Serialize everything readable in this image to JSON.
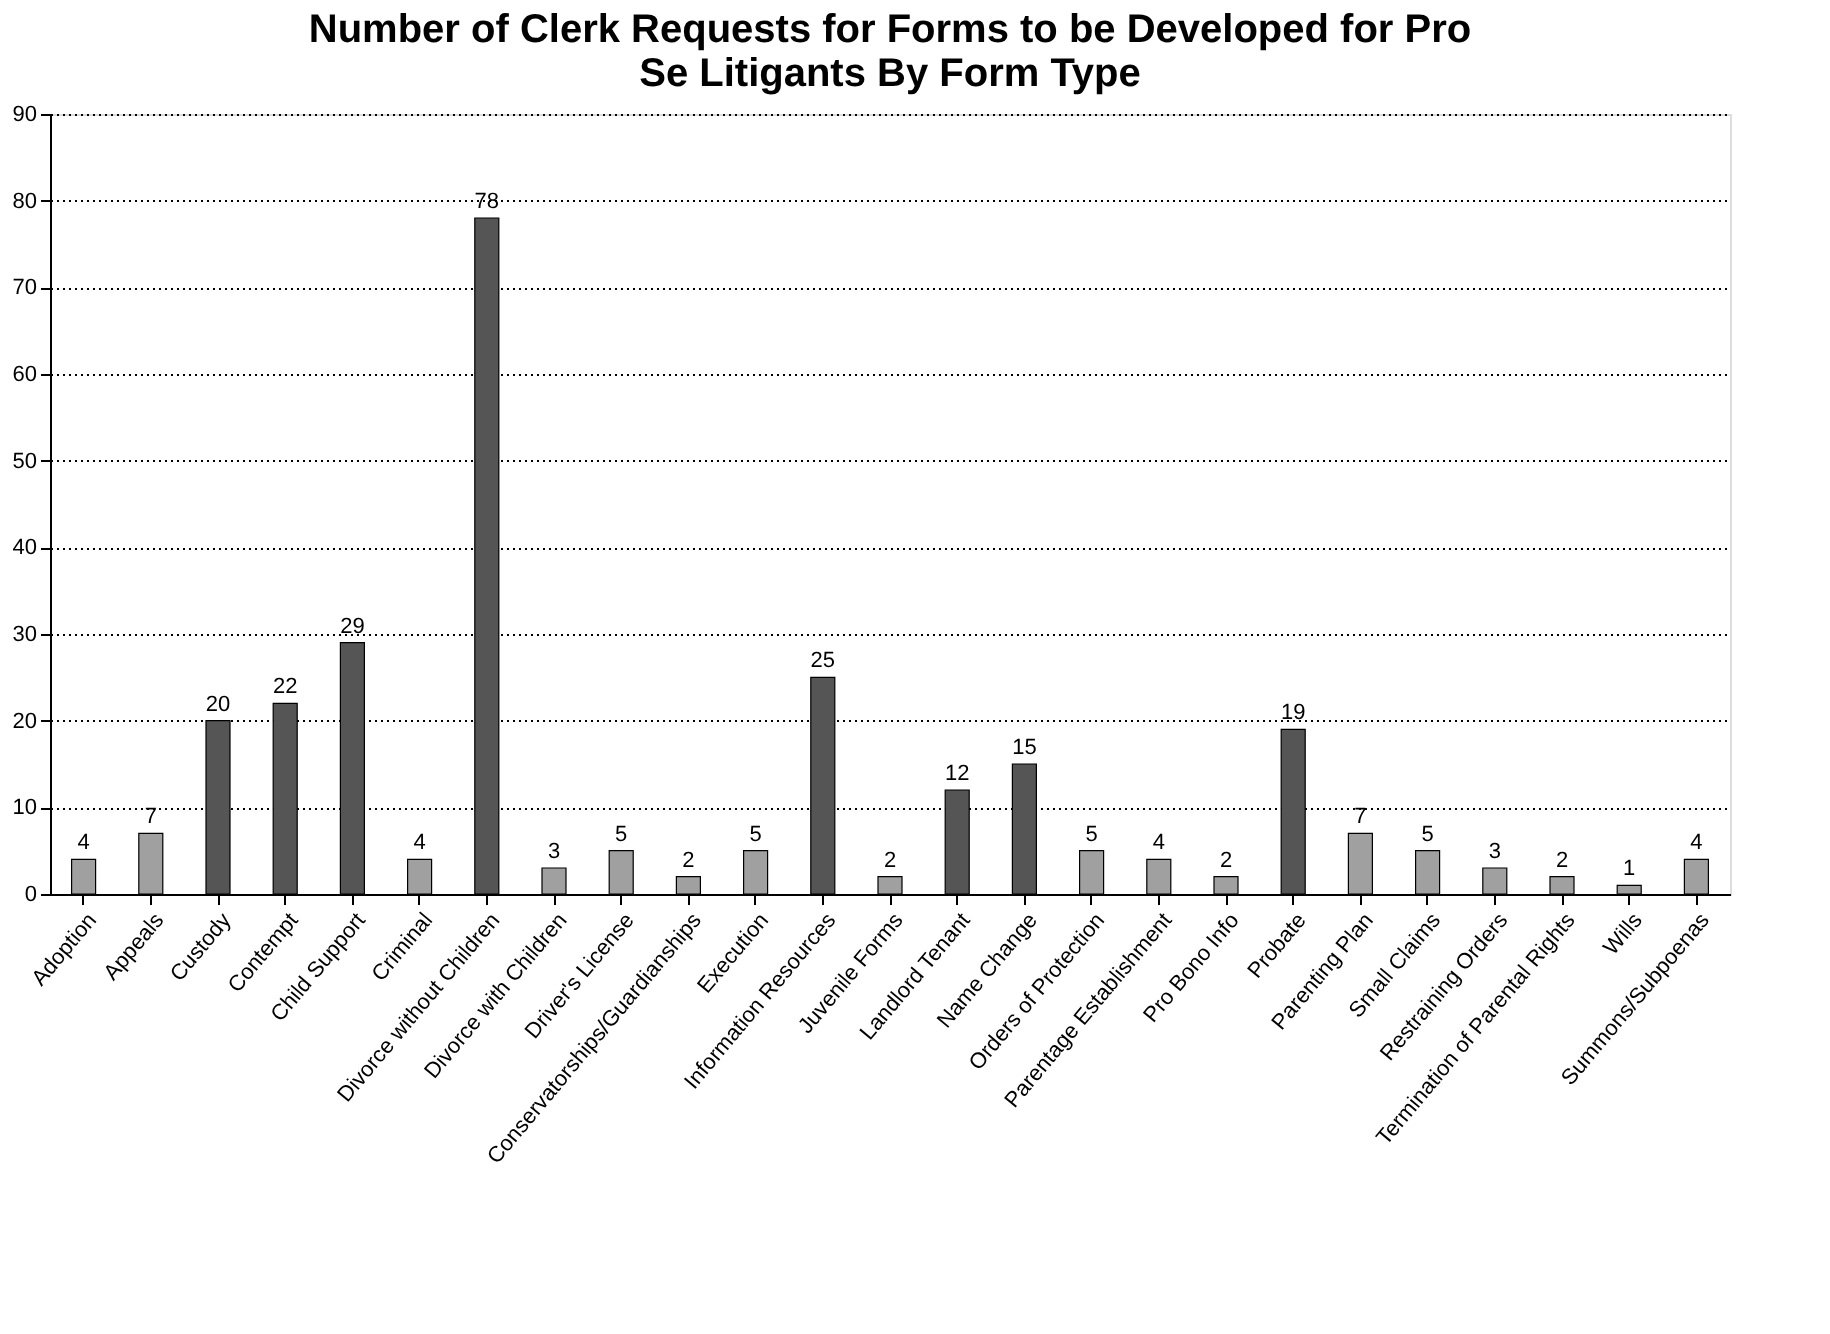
{
  "chart_data": {
    "type": "bar",
    "title": "Number of Clerk Requests for Forms to be Developed for Pro Se Litigants By Form Type",
    "categories": [
      "Adoption",
      "Appeals",
      "Custody",
      "Contempt",
      "Child Support",
      "Criminal",
      "Divorce without Children",
      "Divorce with Children",
      "Driver's License",
      "Conservatorships/Guardianships",
      "Execution",
      "Information Resources",
      "Juvenile Forms",
      "Landlord Tenant",
      "Name Change",
      "Orders of Protection",
      "Parentage Establishment",
      "Pro Bono Info",
      "Probate",
      "Parenting Plan",
      "Small Claims",
      "Restraining Orders",
      "Termination of Parental Rights",
      "Wills",
      "Summons/Subpoenas"
    ],
    "values": [
      4,
      7,
      20,
      22,
      29,
      4,
      78,
      3,
      5,
      2,
      5,
      25,
      2,
      12,
      15,
      5,
      4,
      2,
      19,
      7,
      5,
      3,
      2,
      1,
      4
    ],
    "colors": [
      "#a0a0a0",
      "#a0a0a0",
      "#555555",
      "#555555",
      "#555555",
      "#a0a0a0",
      "#555555",
      "#a0a0a0",
      "#a0a0a0",
      "#a0a0a0",
      "#a0a0a0",
      "#555555",
      "#a0a0a0",
      "#555555",
      "#555555",
      "#a0a0a0",
      "#a0a0a0",
      "#a0a0a0",
      "#555555",
      "#a0a0a0",
      "#a0a0a0",
      "#a0a0a0",
      "#a0a0a0",
      "#a0a0a0",
      "#a0a0a0"
    ],
    "ylim": [
      0,
      90
    ],
    "yticks": [
      0,
      10,
      20,
      30,
      40,
      50,
      60,
      70,
      80,
      90
    ],
    "grid": "y",
    "data_labels": true
  }
}
